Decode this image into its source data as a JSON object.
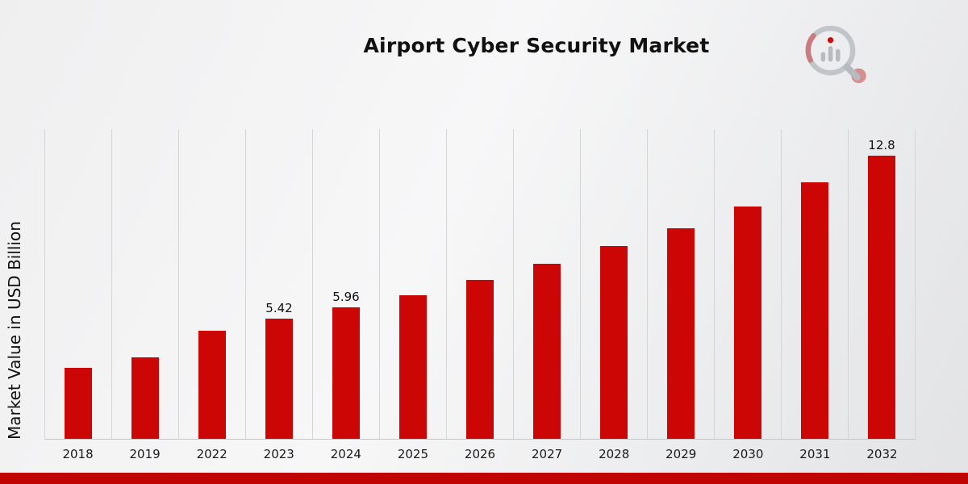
{
  "title": "Airport Cyber Security Market",
  "ylabel": "Market Value in USD Billion",
  "accent_color": "#c00303",
  "bar_color": "#cc0505",
  "logo_icon": "magnifier-bar-chart-logo",
  "chart_data": {
    "type": "bar",
    "title": "Airport Cyber Security Market",
    "xlabel": "",
    "ylabel": "Market Value in USD Billion",
    "categories": [
      "2018",
      "2019",
      "2022",
      "2023",
      "2024",
      "2025",
      "2026",
      "2027",
      "2028",
      "2029",
      "2030",
      "2031",
      "2032"
    ],
    "values": [
      3.2,
      3.7,
      4.9,
      5.42,
      5.96,
      6.5,
      7.2,
      7.9,
      8.7,
      9.5,
      10.5,
      11.6,
      12.8
    ],
    "data_labels": [
      "",
      "",
      "",
      "5.42",
      "5.96",
      "",
      "",
      "",
      "",
      "",
      "",
      "",
      "12.8"
    ],
    "ylim": [
      0,
      14
    ],
    "grid": "vertical-only",
    "legend": "none",
    "bar_color": "#cc0505"
  }
}
